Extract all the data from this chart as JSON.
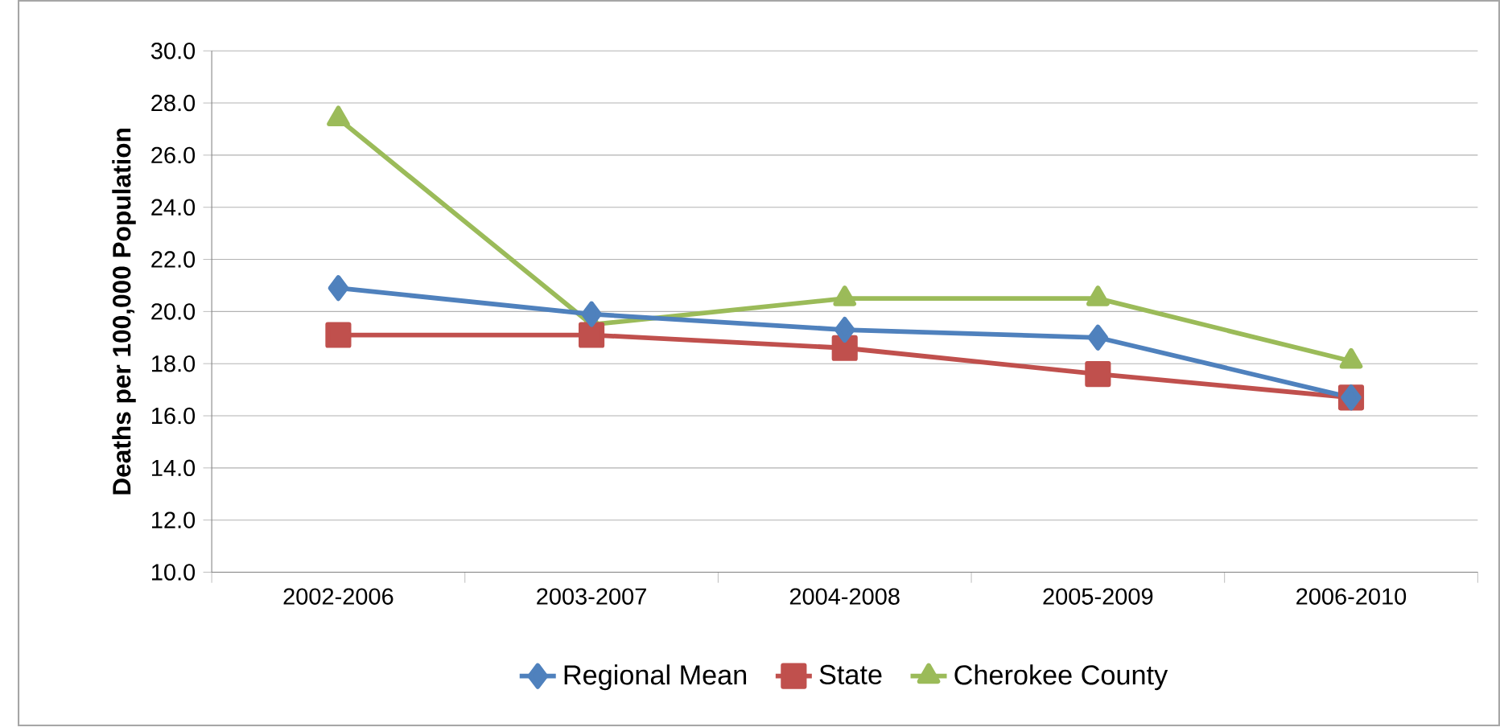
{
  "chart_data": {
    "type": "line",
    "ylabel": "Deaths per 100,000 Population",
    "categories": [
      "2002-2006",
      "2003-2007",
      "2004-2008",
      "2005-2009",
      "2006-2010"
    ],
    "series": [
      {
        "name": "Regional Mean",
        "color": "#4f81bd",
        "marker": "diamond",
        "values": [
          20.9,
          19.9,
          19.3,
          19.0,
          16.7
        ]
      },
      {
        "name": "State",
        "color": "#c0504d",
        "marker": "square",
        "values": [
          19.1,
          19.1,
          18.6,
          17.6,
          16.7
        ]
      },
      {
        "name": "Cherokee County",
        "color": "#9bbb59",
        "marker": "triangle",
        "values": [
          27.4,
          19.5,
          20.5,
          20.5,
          18.1
        ]
      }
    ],
    "ylim": [
      10,
      30
    ],
    "yticks": [
      {
        "value": 10,
        "label": "10.0"
      },
      {
        "value": 12,
        "label": "12.0"
      },
      {
        "value": 14,
        "label": "14.0"
      },
      {
        "value": 16,
        "label": "16.0"
      },
      {
        "value": 18,
        "label": "18.0"
      },
      {
        "value": 20,
        "label": "20.0"
      },
      {
        "value": 22,
        "label": "22.0"
      },
      {
        "value": 24,
        "label": "24.0"
      },
      {
        "value": 26,
        "label": "26.0"
      },
      {
        "value": 28,
        "label": "28.0"
      },
      {
        "value": 30,
        "label": "30.0"
      }
    ],
    "grid": "y",
    "legend": "bottom"
  }
}
